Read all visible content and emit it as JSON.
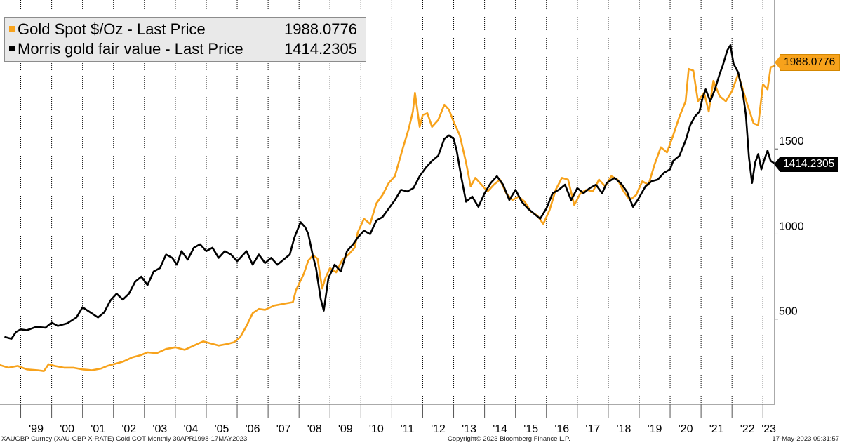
{
  "chart_data": {
    "type": "line",
    "title": "",
    "xlabel": "",
    "ylabel": "",
    "x_tick_labels": [
      "'99",
      "'00",
      "'01",
      "'02",
      "'03",
      "'04",
      "'05",
      "'06",
      "'07",
      "'08",
      "'09",
      "'10",
      "'11",
      "'12",
      "'13",
      "'14",
      "'15",
      "'16",
      "'17",
      "'18",
      "'19",
      "'20",
      "'21",
      "'22",
      "'23"
    ],
    "x_range": [
      1998.33,
      2023.38
    ],
    "y_ticks": [
      500,
      1000,
      1500
    ],
    "y_tick_labels": [
      "500",
      "1000",
      "1500"
    ],
    "ylim": [
      0,
      2375
    ],
    "grid": "vertical",
    "legend_position": "top-left",
    "legend": [
      {
        "name": "Gold Spot $/Oz - Last Price",
        "value": "1988.0776",
        "color": "#f7a21b"
      },
      {
        "name": "Morris gold fair value - Last Price",
        "value": "1414.2305",
        "color": "#000000"
      }
    ],
    "series": [
      {
        "name": "Gold Spot $/Oz - Last Price",
        "color": "#f7a21b",
        "last_value": "1988.0776",
        "points": [
          [
            1998.33,
            230
          ],
          [
            1998.6,
            215
          ],
          [
            1998.9,
            225
          ],
          [
            1999.2,
            205
          ],
          [
            1999.55,
            200
          ],
          [
            1999.75,
            195
          ],
          [
            1999.9,
            235
          ],
          [
            2000.1,
            225
          ],
          [
            2000.4,
            215
          ],
          [
            2000.7,
            215
          ],
          [
            2001.0,
            205
          ],
          [
            2001.3,
            200
          ],
          [
            2001.6,
            210
          ],
          [
            2001.8,
            225
          ],
          [
            2002.0,
            235
          ],
          [
            2002.3,
            250
          ],
          [
            2002.6,
            275
          ],
          [
            2002.9,
            290
          ],
          [
            2003.1,
            305
          ],
          [
            2003.4,
            300
          ],
          [
            2003.7,
            325
          ],
          [
            2004.0,
            335
          ],
          [
            2004.3,
            320
          ],
          [
            2004.6,
            345
          ],
          [
            2004.9,
            370
          ],
          [
            2005.1,
            360
          ],
          [
            2005.4,
            345
          ],
          [
            2005.7,
            355
          ],
          [
            2005.9,
            365
          ],
          [
            2006.1,
            395
          ],
          [
            2006.3,
            460
          ],
          [
            2006.5,
            535
          ],
          [
            2006.7,
            560
          ],
          [
            2006.9,
            555
          ],
          [
            2007.2,
            580
          ],
          [
            2007.5,
            590
          ],
          [
            2007.8,
            600
          ],
          [
            2007.9,
            670
          ],
          [
            2008.15,
            765
          ],
          [
            2008.3,
            845
          ],
          [
            2008.45,
            875
          ],
          [
            2008.6,
            855
          ],
          [
            2008.75,
            680
          ],
          [
            2008.85,
            740
          ],
          [
            2009.0,
            800
          ],
          [
            2009.2,
            775
          ],
          [
            2009.4,
            850
          ],
          [
            2009.6,
            880
          ],
          [
            2009.8,
            920
          ],
          [
            2009.9,
            1010
          ],
          [
            2010.1,
            1090
          ],
          [
            2010.3,
            1060
          ],
          [
            2010.5,
            1180
          ],
          [
            2010.7,
            1230
          ],
          [
            2010.9,
            1300
          ],
          [
            2011.1,
            1340
          ],
          [
            2011.35,
            1500
          ],
          [
            2011.55,
            1620
          ],
          [
            2011.68,
            1720
          ],
          [
            2011.75,
            1830
          ],
          [
            2011.9,
            1630
          ],
          [
            2012.0,
            1700
          ],
          [
            2012.15,
            1710
          ],
          [
            2012.3,
            1630
          ],
          [
            2012.5,
            1670
          ],
          [
            2012.7,
            1760
          ],
          [
            2012.85,
            1730
          ],
          [
            2013.0,
            1660
          ],
          [
            2013.2,
            1580
          ],
          [
            2013.4,
            1420
          ],
          [
            2013.55,
            1280
          ],
          [
            2013.7,
            1330
          ],
          [
            2013.9,
            1290
          ],
          [
            2014.1,
            1250
          ],
          [
            2014.3,
            1290
          ],
          [
            2014.5,
            1320
          ],
          [
            2014.7,
            1240
          ],
          [
            2014.9,
            1200
          ],
          [
            2015.1,
            1220
          ],
          [
            2015.3,
            1190
          ],
          [
            2015.5,
            1130
          ],
          [
            2015.7,
            1110
          ],
          [
            2015.9,
            1060
          ],
          [
            2016.1,
            1140
          ],
          [
            2016.3,
            1260
          ],
          [
            2016.5,
            1330
          ],
          [
            2016.7,
            1320
          ],
          [
            2016.9,
            1170
          ],
          [
            2017.1,
            1240
          ],
          [
            2017.3,
            1260
          ],
          [
            2017.5,
            1250
          ],
          [
            2017.7,
            1320
          ],
          [
            2017.9,
            1280
          ],
          [
            2018.1,
            1340
          ],
          [
            2018.3,
            1320
          ],
          [
            2018.5,
            1250
          ],
          [
            2018.7,
            1200
          ],
          [
            2018.9,
            1230
          ],
          [
            2019.1,
            1310
          ],
          [
            2019.3,
            1290
          ],
          [
            2019.5,
            1410
          ],
          [
            2019.7,
            1510
          ],
          [
            2019.9,
            1480
          ],
          [
            2020.1,
            1580
          ],
          [
            2020.3,
            1690
          ],
          [
            2020.5,
            1780
          ],
          [
            2020.6,
            1970
          ],
          [
            2020.75,
            1960
          ],
          [
            2020.9,
            1780
          ],
          [
            2021.1,
            1830
          ],
          [
            2021.25,
            1720
          ],
          [
            2021.4,
            1900
          ],
          [
            2021.6,
            1810
          ],
          [
            2021.8,
            1780
          ],
          [
            2022.0,
            1840
          ],
          [
            2022.2,
            1940
          ],
          [
            2022.35,
            1850
          ],
          [
            2022.5,
            1760
          ],
          [
            2022.7,
            1650
          ],
          [
            2022.85,
            1640
          ],
          [
            2023.0,
            1880
          ],
          [
            2023.15,
            1850
          ],
          [
            2023.25,
            1980
          ],
          [
            2023.38,
            1988.08
          ]
        ]
      },
      {
        "name": "Morris gold fair value - Last Price",
        "color": "#000000",
        "last_value": "1414.2305",
        "points": [
          [
            1998.5,
            395
          ],
          [
            1998.7,
            385
          ],
          [
            1998.85,
            425
          ],
          [
            1999.0,
            440
          ],
          [
            1999.2,
            435
          ],
          [
            1999.5,
            455
          ],
          [
            1999.8,
            450
          ],
          [
            2000.0,
            480
          ],
          [
            2000.2,
            460
          ],
          [
            2000.5,
            475
          ],
          [
            2000.8,
            510
          ],
          [
            2001.0,
            570
          ],
          [
            2001.25,
            540
          ],
          [
            2001.5,
            510
          ],
          [
            2001.7,
            540
          ],
          [
            2001.9,
            610
          ],
          [
            2002.1,
            650
          ],
          [
            2002.3,
            615
          ],
          [
            2002.5,
            650
          ],
          [
            2002.7,
            720
          ],
          [
            2002.9,
            750
          ],
          [
            2003.1,
            700
          ],
          [
            2003.3,
            780
          ],
          [
            2003.5,
            800
          ],
          [
            2003.7,
            880
          ],
          [
            2003.9,
            860
          ],
          [
            2004.05,
            820
          ],
          [
            2004.2,
            900
          ],
          [
            2004.4,
            850
          ],
          [
            2004.6,
            920
          ],
          [
            2004.8,
            940
          ],
          [
            2005.0,
            900
          ],
          [
            2005.2,
            920
          ],
          [
            2005.4,
            860
          ],
          [
            2005.6,
            900
          ],
          [
            2005.8,
            880
          ],
          [
            2006.0,
            840
          ],
          [
            2006.3,
            900
          ],
          [
            2006.5,
            820
          ],
          [
            2006.7,
            880
          ],
          [
            2006.9,
            830
          ],
          [
            2007.1,
            860
          ],
          [
            2007.3,
            820
          ],
          [
            2007.5,
            850
          ],
          [
            2007.7,
            880
          ],
          [
            2007.85,
            980
          ],
          [
            2008.05,
            1070
          ],
          [
            2008.2,
            1040
          ],
          [
            2008.3,
            1000
          ],
          [
            2008.45,
            870
          ],
          [
            2008.55,
            800
          ],
          [
            2008.7,
            620
          ],
          [
            2008.8,
            550
          ],
          [
            2008.95,
            740
          ],
          [
            2009.15,
            820
          ],
          [
            2009.35,
            780
          ],
          [
            2009.55,
            900
          ],
          [
            2009.75,
            940
          ],
          [
            2009.9,
            980
          ],
          [
            2010.1,
            1020
          ],
          [
            2010.3,
            1000
          ],
          [
            2010.5,
            1080
          ],
          [
            2010.7,
            1100
          ],
          [
            2010.9,
            1150
          ],
          [
            2011.1,
            1200
          ],
          [
            2011.3,
            1260
          ],
          [
            2011.5,
            1250
          ],
          [
            2011.7,
            1270
          ],
          [
            2011.9,
            1340
          ],
          [
            2012.1,
            1390
          ],
          [
            2012.3,
            1430
          ],
          [
            2012.5,
            1460
          ],
          [
            2012.7,
            1560
          ],
          [
            2012.85,
            1580
          ],
          [
            2013.0,
            1560
          ],
          [
            2013.1,
            1490
          ],
          [
            2013.25,
            1330
          ],
          [
            2013.4,
            1190
          ],
          [
            2013.6,
            1220
          ],
          [
            2013.8,
            1160
          ],
          [
            2014.0,
            1240
          ],
          [
            2014.2,
            1300
          ],
          [
            2014.4,
            1340
          ],
          [
            2014.6,
            1290
          ],
          [
            2014.8,
            1200
          ],
          [
            2015.0,
            1260
          ],
          [
            2015.2,
            1190
          ],
          [
            2015.4,
            1150
          ],
          [
            2015.6,
            1120
          ],
          [
            2015.8,
            1090
          ],
          [
            2016.0,
            1150
          ],
          [
            2016.2,
            1240
          ],
          [
            2016.4,
            1260
          ],
          [
            2016.6,
            1290
          ],
          [
            2016.8,
            1200
          ],
          [
            2017.0,
            1270
          ],
          [
            2017.2,
            1240
          ],
          [
            2017.4,
            1270
          ],
          [
            2017.6,
            1290
          ],
          [
            2017.8,
            1240
          ],
          [
            2017.95,
            1300
          ],
          [
            2018.2,
            1330
          ],
          [
            2018.4,
            1300
          ],
          [
            2018.6,
            1250
          ],
          [
            2018.8,
            1160
          ],
          [
            2018.95,
            1200
          ],
          [
            2019.2,
            1280
          ],
          [
            2019.4,
            1310
          ],
          [
            2019.6,
            1320
          ],
          [
            2019.8,
            1360
          ],
          [
            2020.0,
            1380
          ],
          [
            2020.1,
            1430
          ],
          [
            2020.3,
            1460
          ],
          [
            2020.5,
            1550
          ],
          [
            2020.65,
            1640
          ],
          [
            2020.8,
            1690
          ],
          [
            2020.95,
            1720
          ],
          [
            2021.05,
            1800
          ],
          [
            2021.15,
            1850
          ],
          [
            2021.3,
            1780
          ],
          [
            2021.45,
            1850
          ],
          [
            2021.6,
            1940
          ],
          [
            2021.7,
            1990
          ],
          [
            2021.85,
            2080
          ],
          [
            2021.95,
            2110
          ],
          [
            2022.05,
            2000
          ],
          [
            2022.2,
            1950
          ],
          [
            2022.35,
            1830
          ],
          [
            2022.45,
            1700
          ],
          [
            2022.55,
            1450
          ],
          [
            2022.65,
            1300
          ],
          [
            2022.75,
            1420
          ],
          [
            2022.85,
            1470
          ],
          [
            2022.95,
            1380
          ],
          [
            2023.05,
            1440
          ],
          [
            2023.15,
            1490
          ],
          [
            2023.25,
            1430
          ],
          [
            2023.38,
            1414.23
          ]
        ]
      }
    ]
  },
  "footer": {
    "left": "XAUGBP Curncy (XAU-GBP X-RATE) Gold COT  Monthly 30APR1998-17MAY2023",
    "center": "Copyright© 2023 Bloomberg Finance L.P.",
    "right": "17-May-2023 09:31:57"
  }
}
